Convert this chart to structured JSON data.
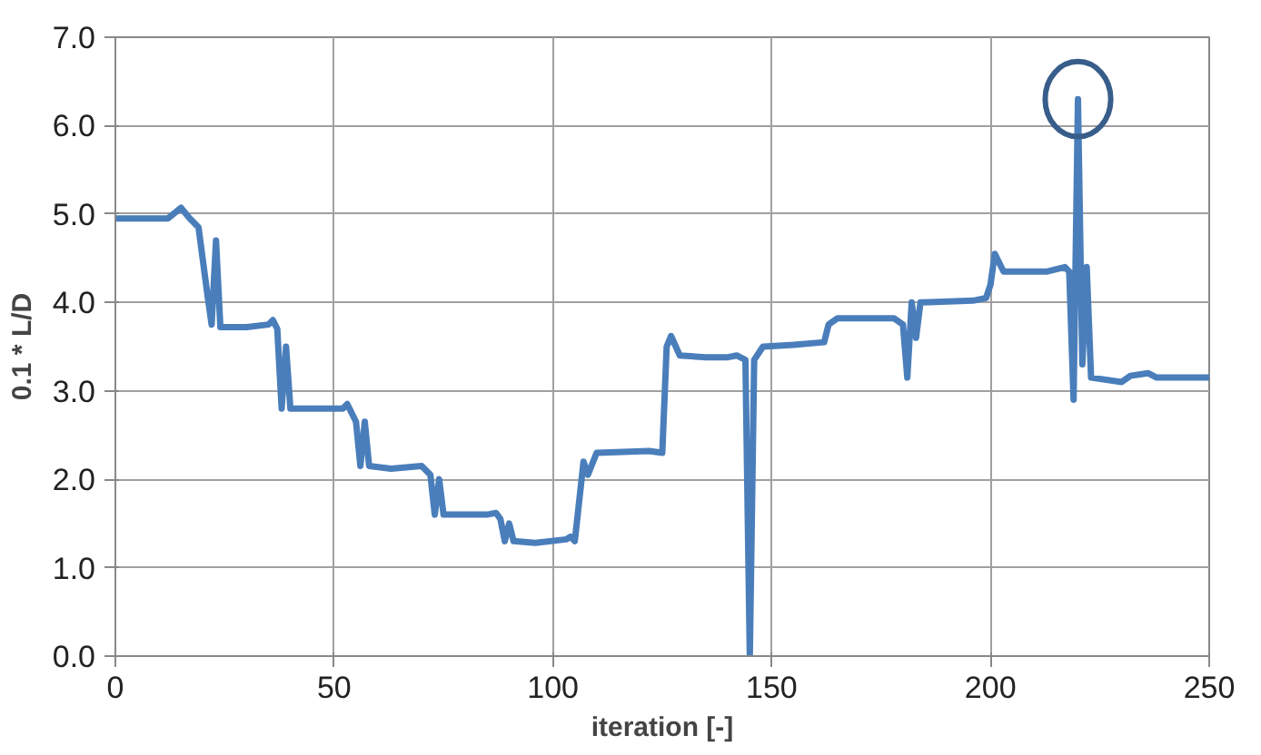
{
  "chart_data": {
    "type": "line",
    "xlabel": "iteration [-]",
    "ylabel": "0.1 * L/D",
    "xlim": [
      0,
      250
    ],
    "xticks": [
      0,
      50,
      100,
      150,
      200,
      250
    ],
    "ylim": [
      0,
      7
    ],
    "yticks": [
      {
        "value": 0,
        "label": "0.0"
      },
      {
        "value": 1,
        "label": "1.0"
      },
      {
        "value": 2,
        "label": "2.0"
      },
      {
        "value": 3,
        "label": "3.0"
      },
      {
        "value": 4,
        "label": "4.0"
      },
      {
        "value": 5,
        "label": "5.0"
      },
      {
        "value": 6,
        "label": "6.0"
      },
      {
        "value": 7,
        "label": "7.0"
      }
    ],
    "grid": true,
    "marker": "none",
    "line_style": "solid",
    "series": [
      {
        "color": "#4a7ebb",
        "x": [
          0,
          12,
          15,
          17,
          19,
          21,
          22,
          23,
          24,
          30,
          35,
          36,
          37,
          38,
          39,
          40,
          45,
          52,
          53,
          55,
          56,
          57,
          58,
          63,
          70,
          72,
          73,
          74,
          75,
          85,
          87,
          88,
          89,
          90,
          91,
          96,
          103,
          104,
          105,
          107,
          108,
          110,
          122,
          125,
          126,
          127,
          129,
          135,
          140,
          142,
          144,
          145,
          146,
          148,
          155,
          162,
          163,
          165,
          178,
          180,
          181,
          182,
          183,
          184,
          196,
          199,
          200,
          201,
          203,
          213,
          217,
          218,
          219,
          220,
          221,
          222,
          223,
          230,
          232,
          236,
          238,
          250
        ],
        "values": [
          4.95,
          4.95,
          5.07,
          4.95,
          4.85,
          4.1,
          3.75,
          4.7,
          3.72,
          3.72,
          3.75,
          3.8,
          3.7,
          2.8,
          3.5,
          2.8,
          2.8,
          2.8,
          2.85,
          2.65,
          2.15,
          2.65,
          2.15,
          2.12,
          2.15,
          2.05,
          1.6,
          2.0,
          1.6,
          1.6,
          1.62,
          1.55,
          1.3,
          1.5,
          1.3,
          1.28,
          1.32,
          1.35,
          1.3,
          2.2,
          2.05,
          2.3,
          2.32,
          2.3,
          3.5,
          3.62,
          3.4,
          3.38,
          3.38,
          3.4,
          3.35,
          0.0,
          3.35,
          3.5,
          3.52,
          3.55,
          3.75,
          3.82,
          3.82,
          3.75,
          3.15,
          4.0,
          3.6,
          4.0,
          4.02,
          4.05,
          4.2,
          4.55,
          4.35,
          4.35,
          4.4,
          4.35,
          2.9,
          6.3,
          3.3,
          4.4,
          3.15,
          3.1,
          3.17,
          3.2,
          3.15,
          3.15
        ]
      }
    ]
  }
}
